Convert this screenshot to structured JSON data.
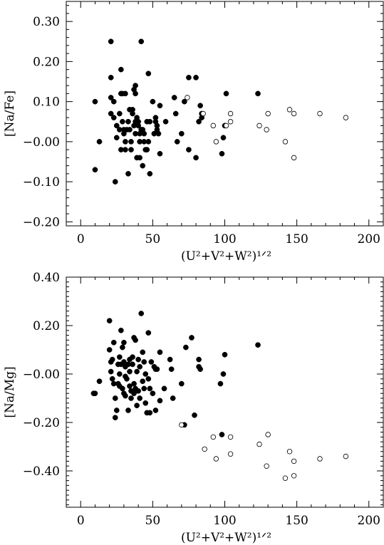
{
  "chart_data": [
    {
      "type": "scatter",
      "xlabel": "(U²+V²+W²)¹ᐟ²",
      "ylabel": "[Na/Fe]",
      "xlim": [
        -10,
        210
      ],
      "ylim": [
        -0.21,
        0.35
      ],
      "x_ticks": [
        0,
        50,
        100,
        150,
        200
      ],
      "x_tick_labels": [
        "0",
        "50",
        "100",
        "150",
        "200"
      ],
      "y_ticks": [
        -0.2,
        -0.1,
        0.0,
        0.1,
        0.2,
        0.3
      ],
      "y_tick_labels": [
        "−0.20",
        "−0.10",
        "−0.00",
        "0.10",
        "0.20",
        "0.30"
      ],
      "grid": false,
      "series": [
        {
          "marker": "filled-circle",
          "color": "#000000",
          "points": [
            [
              10,
              0.1
            ],
            [
              10,
              -0.07
            ],
            [
              13,
              0.0
            ],
            [
              21,
              0.25
            ],
            [
              21,
              0.16
            ],
            [
              21,
              0.11
            ],
            [
              21,
              0.07
            ],
            [
              23,
              0.1
            ],
            [
              23,
              0.06
            ],
            [
              24,
              -0.1
            ],
            [
              25,
              0.01
            ],
            [
              25,
              0.04
            ],
            [
              27,
              0.07
            ],
            [
              27,
              0.03
            ],
            [
              28,
              0.18
            ],
            [
              28,
              -0.02
            ],
            [
              28,
              0.12
            ],
            [
              29,
              0.12
            ],
            [
              29,
              0.05
            ],
            [
              30,
              0.03
            ],
            [
              30,
              0.02
            ],
            [
              31,
              0.12
            ],
            [
              31,
              0.0
            ],
            [
              31,
              -0.02
            ],
            [
              32,
              0.03
            ],
            [
              33,
              0.05
            ],
            [
              33,
              -0.08
            ],
            [
              34,
              0.08
            ],
            [
              34,
              0.03
            ],
            [
              35,
              0.0
            ],
            [
              35,
              -0.02
            ],
            [
              36,
              0.08
            ],
            [
              36,
              0.07
            ],
            [
              37,
              0.04
            ],
            [
              37,
              0.13
            ],
            [
              38,
              0.14
            ],
            [
              38,
              0.12
            ],
            [
              38,
              0.05
            ],
            [
              38,
              0.02
            ],
            [
              39,
              0.06
            ],
            [
              39,
              -0.04
            ],
            [
              40,
              0.04
            ],
            [
              40,
              0.05
            ],
            [
              41,
              -0.04
            ],
            [
              41,
              0.0
            ],
            [
              41,
              0.02
            ],
            [
              42,
              0.25
            ],
            [
              42,
              0.03
            ],
            [
              43,
              -0.06
            ],
            [
              43,
              0.03
            ],
            [
              44,
              0.02
            ],
            [
              44,
              0.0
            ],
            [
              45,
              -0.02
            ],
            [
              46,
              0.05
            ],
            [
              46,
              -0.02
            ],
            [
              47,
              0.17
            ],
            [
              47,
              0.0
            ],
            [
              48,
              -0.08
            ],
            [
              48,
              0.05
            ],
            [
              50,
              0.1
            ],
            [
              51,
              0.02
            ],
            [
              52,
              0.06
            ],
            [
              52,
              0.05
            ],
            [
              53,
              0.04
            ],
            [
              53,
              0.03
            ],
            [
              54,
              0.02
            ],
            [
              55,
              0.09
            ],
            [
              55,
              -0.03
            ],
            [
              59,
              0.05
            ],
            [
              65,
              0.11
            ],
            [
              66,
              0.07
            ],
            [
              67,
              0.0
            ],
            [
              70,
              0.02
            ],
            [
              72,
              0.1
            ],
            [
              75,
              0.16
            ],
            [
              75,
              -0.02
            ],
            [
              80,
              0.16
            ],
            [
              80,
              -0.04
            ],
            [
              82,
              0.05
            ],
            [
              83,
              0.09
            ],
            [
              84,
              0.07
            ],
            [
              84,
              0.06
            ],
            [
              98,
              -0.03
            ],
            [
              99,
              0.01
            ],
            [
              100,
              0.04
            ],
            [
              101,
              0.12
            ],
            [
              123,
              0.12
            ]
          ]
        },
        {
          "marker": "open-circle",
          "color": "#000000",
          "points": [
            [
              74,
              0.11
            ],
            [
              85,
              0.07
            ],
            [
              92,
              0.04
            ],
            [
              94,
              0.0
            ],
            [
              101,
              0.04
            ],
            [
              104,
              0.05
            ],
            [
              104,
              0.07
            ],
            [
              124,
              0.04
            ],
            [
              129,
              0.03
            ],
            [
              130,
              0.07
            ],
            [
              142,
              0.0
            ],
            [
              145,
              0.08
            ],
            [
              148,
              0.07
            ],
            [
              148,
              -0.04
            ],
            [
              166,
              0.07
            ],
            [
              184,
              0.06
            ]
          ]
        }
      ]
    },
    {
      "type": "scatter",
      "xlabel": "(U²+V²+W²)¹ᐟ²",
      "ylabel": "[Na/Mg]",
      "xlim": [
        -10,
        210
      ],
      "ylim": [
        -0.55,
        0.4
      ],
      "x_ticks": [
        0,
        50,
        100,
        150,
        200
      ],
      "x_tick_labels": [
        "0",
        "50",
        "100",
        "150",
        "200"
      ],
      "y_ticks": [
        -0.4,
        -0.2,
        0.0,
        0.2,
        0.4
      ],
      "y_tick_labels": [
        "−0.40",
        "−0.20",
        "−0.00",
        "0.20",
        "0.40"
      ],
      "grid": false,
      "series": [
        {
          "marker": "filled-circle",
          "color": "#000000",
          "points": [
            [
              9,
              -0.08
            ],
            [
              10,
              -0.08
            ],
            [
              13,
              -0.03
            ],
            [
              20,
              0.22
            ],
            [
              20,
              0.1
            ],
            [
              21,
              0.05
            ],
            [
              21,
              0.01
            ],
            [
              22,
              -0.02
            ],
            [
              22,
              0.06
            ],
            [
              23,
              0.13
            ],
            [
              23,
              -0.04
            ],
            [
              24,
              -0.18
            ],
            [
              24,
              -0.1
            ],
            [
              25,
              -0.15
            ],
            [
              26,
              0.04
            ],
            [
              26,
              -0.04
            ],
            [
              27,
              0.07
            ],
            [
              27,
              0.0
            ],
            [
              27,
              -0.05
            ],
            [
              28,
              0.18
            ],
            [
              28,
              0.04
            ],
            [
              29,
              0.11
            ],
            [
              29,
              -0.06
            ],
            [
              30,
              0.05
            ],
            [
              30,
              0.13
            ],
            [
              30,
              -0.08
            ],
            [
              31,
              -0.01
            ],
            [
              31,
              0.03
            ],
            [
              31,
              -0.09
            ],
            [
              32,
              -0.02
            ],
            [
              33,
              0.04
            ],
            [
              33,
              -0.15
            ],
            [
              34,
              0.06
            ],
            [
              34,
              0.01
            ],
            [
              34,
              -0.05
            ],
            [
              35,
              -0.07
            ],
            [
              35,
              -0.1
            ],
            [
              36,
              0.07
            ],
            [
              36,
              0.04
            ],
            [
              37,
              0.15
            ],
            [
              37,
              -0.04
            ],
            [
              37,
              -0.08
            ],
            [
              38,
              0.14
            ],
            [
              38,
              -0.06
            ],
            [
              39,
              0.01
            ],
            [
              39,
              -0.13
            ],
            [
              40,
              0.06
            ],
            [
              40,
              -0.07
            ],
            [
              41,
              -0.1
            ],
            [
              41,
              0.03
            ],
            [
              42,
              0.25
            ],
            [
              43,
              0.09
            ],
            [
              43,
              -0.03
            ],
            [
              44,
              -0.06
            ],
            [
              44,
              0.05
            ],
            [
              45,
              0.0
            ],
            [
              45,
              -0.12
            ],
            [
              46,
              -0.16
            ],
            [
              47,
              0.17
            ],
            [
              47,
              -0.02
            ],
            [
              48,
              -0.16
            ],
            [
              48,
              -0.06
            ],
            [
              49,
              0.05
            ],
            [
              50,
              -0.08
            ],
            [
              51,
              0.03
            ],
            [
              52,
              -0.15
            ],
            [
              52,
              0.02
            ],
            [
              53,
              0.02
            ],
            [
              55,
              0.09
            ],
            [
              55,
              -0.11
            ],
            [
              58,
              -0.06
            ],
            [
              62,
              0.06
            ],
            [
              63,
              0.02
            ],
            [
              64,
              -0.1
            ],
            [
              70,
              -0.04
            ],
            [
              72,
              -0.21
            ],
            [
              73,
              0.11
            ],
            [
              77,
              0.15
            ],
            [
              79,
              -0.17
            ],
            [
              82,
              0.06
            ],
            [
              82,
              0.03
            ],
            [
              83,
              0.02
            ],
            [
              97,
              -0.04
            ],
            [
              98,
              -0.25
            ],
            [
              99,
              0.0
            ],
            [
              100,
              0.08
            ],
            [
              123,
              0.12
            ]
          ]
        },
        {
          "marker": "open-circle",
          "color": "#000000",
          "points": [
            [
              70,
              -0.21
            ],
            [
              86,
              -0.31
            ],
            [
              92,
              -0.26
            ],
            [
              94,
              -0.35
            ],
            [
              104,
              -0.26
            ],
            [
              104,
              -0.33
            ],
            [
              124,
              -0.29
            ],
            [
              129,
              -0.38
            ],
            [
              130,
              -0.25
            ],
            [
              142,
              -0.43
            ],
            [
              145,
              -0.32
            ],
            [
              148,
              -0.42
            ],
            [
              148,
              -0.36
            ],
            [
              166,
              -0.35
            ],
            [
              184,
              -0.34
            ]
          ]
        }
      ]
    }
  ]
}
